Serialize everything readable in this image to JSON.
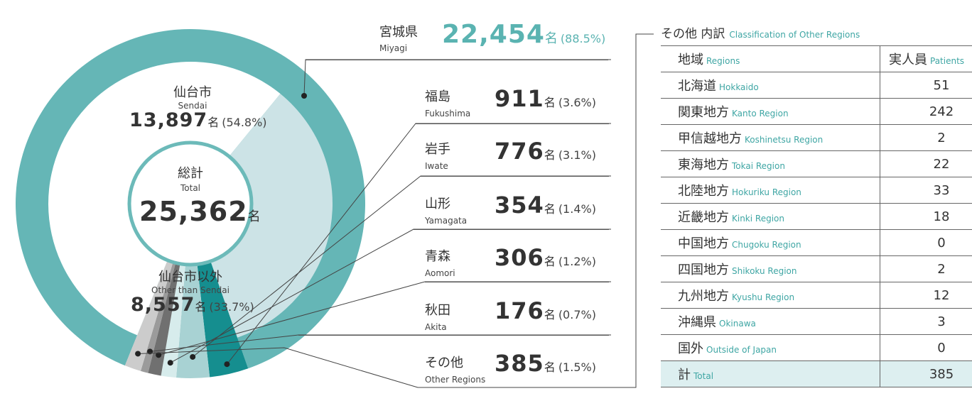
{
  "chart_data": {
    "type": "pie",
    "subtype": "nested-donut",
    "total": {
      "label_jp": "総計",
      "label_en": "Total",
      "value": "25,362",
      "unit": "名"
    },
    "inner_ring": [
      {
        "name_jp": "仙台市",
        "name_en": "Sendai",
        "value": 13897,
        "value_text": "13,897",
        "unit": "名",
        "pct": "(54.8%)",
        "color": "#ffffff"
      },
      {
        "name_jp": "仙台市以外",
        "name_en": "Other than Sendai",
        "value": 8557,
        "value_text": "8,557",
        "unit": "名",
        "pct": "(33.7%)",
        "color": "#cce3e6"
      }
    ],
    "outer_ring": [
      {
        "name_jp": "宮城県",
        "name_en": "Miyagi",
        "value": 22454,
        "value_text": "22,454",
        "unit": "名",
        "pct": "(88.5%)",
        "color": "#65b6b6"
      },
      {
        "name_jp": "福島",
        "name_en": "Fukushima",
        "value": 911,
        "value_text": "911",
        "unit": "名",
        "pct": "(3.6%)",
        "color": "#158e8f"
      },
      {
        "name_jp": "岩手",
        "name_en": "Iwate",
        "value": 776,
        "value_text": "776",
        "unit": "名",
        "pct": "(3.1%)",
        "color": "#a8d2d3"
      },
      {
        "name_jp": "山形",
        "name_en": "Yamagata",
        "value": 354,
        "value_text": "354",
        "unit": "名",
        "pct": "(1.4%)",
        "color": "#d7ecec"
      },
      {
        "name_jp": "青森",
        "name_en": "Aomori",
        "value": 306,
        "value_text": "306",
        "unit": "名",
        "pct": "(1.2%)",
        "color": "#707070"
      },
      {
        "name_jp": "秋田",
        "name_en": "Akita",
        "value": 176,
        "value_text": "176",
        "unit": "名",
        "pct": "(0.7%)",
        "color": "#9b9b9b"
      },
      {
        "name_jp": "その他",
        "name_en": "Other Regions",
        "value": 385,
        "value_text": "385",
        "unit": "名",
        "pct": "(1.5%)",
        "color": "#cccccc"
      }
    ]
  },
  "colors": {
    "teal_text": "#5ab3b1",
    "teal_light_text": "#3fa6a4",
    "table_total_bg": "#ddeff0"
  },
  "other_table": {
    "title_jp": "その他 内訳",
    "title_en": "Classification of Other Regions",
    "header": {
      "region_jp": "地域",
      "region_en": "Regions",
      "patients_jp": "実人員",
      "patients_en": "Patients"
    },
    "rows": [
      {
        "jp": "北海道",
        "en": "Hokkaido",
        "value": "51"
      },
      {
        "jp": "関東地方",
        "en": "Kanto Region",
        "value": "242"
      },
      {
        "jp": "甲信越地方",
        "en": "Koshinetsu Region",
        "value": "2"
      },
      {
        "jp": "東海地方",
        "en": "Tokai Region",
        "value": "22"
      },
      {
        "jp": "北陸地方",
        "en": "Hokuriku Region",
        "value": "33"
      },
      {
        "jp": "近畿地方",
        "en": "Kinki Region",
        "value": "18"
      },
      {
        "jp": "中国地方",
        "en": "Chugoku Region",
        "value": "0"
      },
      {
        "jp": "四国地方",
        "en": "Shikoku Region",
        "value": "2"
      },
      {
        "jp": "九州地方",
        "en": "Kyushu Region",
        "value": "12"
      },
      {
        "jp": "沖縄県",
        "en": "Okinawa",
        "value": "3"
      },
      {
        "jp": "国外",
        "en": "Outside of Japan",
        "value": "0"
      }
    ],
    "total": {
      "jp": "計",
      "en": "Total",
      "value": "385"
    }
  }
}
